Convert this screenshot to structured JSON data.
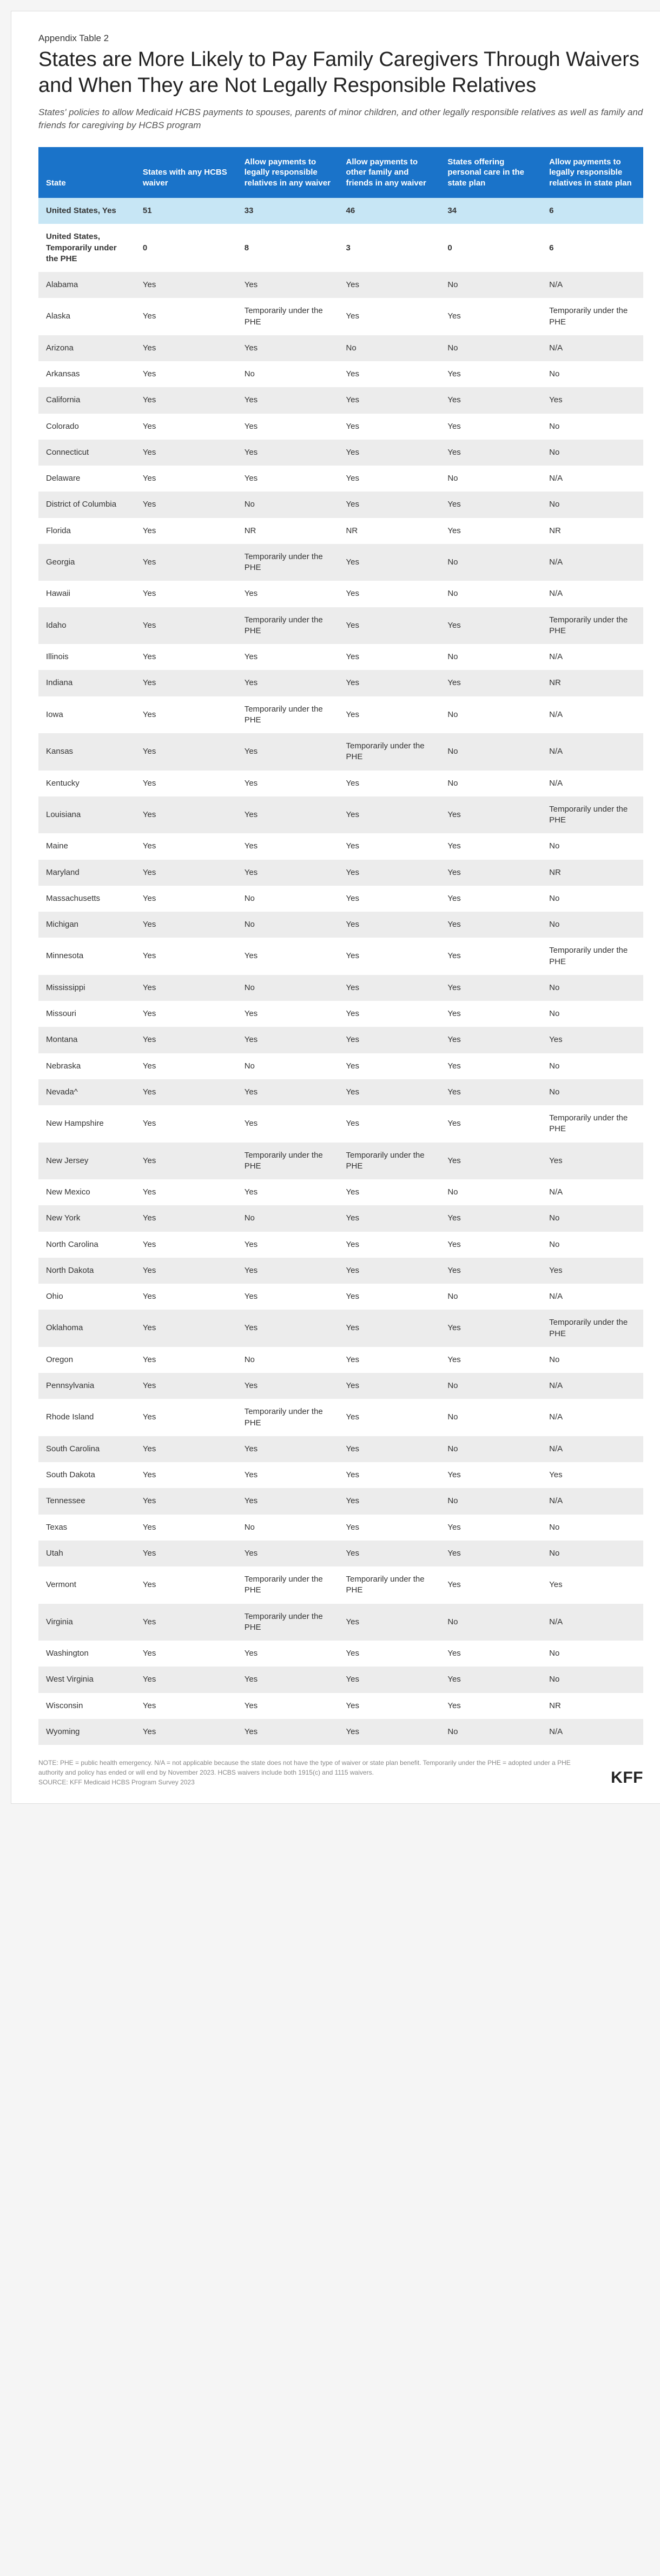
{
  "preTitle": "Appendix Table 2",
  "title": "States are More Likely to Pay Family Caregivers Through Waivers and When They are Not Legally Responsible Relatives",
  "subtitle": "States' policies to allow Medicaid HCBS payments to spouses, parents of minor children, and other legally responsible relatives as well as family and friends for caregiving by HCBS program",
  "columns": [
    "State",
    "States with any HCBS waiver",
    "Allow payments to legally responsible relatives in any waiver",
    "Allow payments to other family and friends in any waiver",
    "States offering personal care in the state plan",
    "Allow payments to legally responsible relatives in state plan"
  ],
  "summaryRows": [
    {
      "cells": [
        "United States, Yes",
        "51",
        "33",
        "46",
        "34",
        "6"
      ],
      "highlight": true
    },
    {
      "cells": [
        "United States, Temporarily under the PHE",
        "0",
        "8",
        "3",
        "0",
        "6"
      ],
      "bold": true
    }
  ],
  "rows": [
    [
      "Alabama",
      "Yes",
      "Yes",
      "Yes",
      "No",
      "N/A"
    ],
    [
      "Alaska",
      "Yes",
      "Temporarily under the PHE",
      "Yes",
      "Yes",
      "Temporarily under the PHE"
    ],
    [
      "Arizona",
      "Yes",
      "Yes",
      "No",
      "No",
      "N/A"
    ],
    [
      "Arkansas",
      "Yes",
      "No",
      "Yes",
      "Yes",
      "No"
    ],
    [
      "California",
      "Yes",
      "Yes",
      "Yes",
      "Yes",
      "Yes"
    ],
    [
      "Colorado",
      "Yes",
      "Yes",
      "Yes",
      "Yes",
      "No"
    ],
    [
      "Connecticut",
      "Yes",
      "Yes",
      "Yes",
      "Yes",
      "No"
    ],
    [
      "Delaware",
      "Yes",
      "Yes",
      "Yes",
      "No",
      "N/A"
    ],
    [
      "District of Columbia",
      "Yes",
      "No",
      "Yes",
      "Yes",
      "No"
    ],
    [
      "Florida",
      "Yes",
      "NR",
      "NR",
      "Yes",
      "NR"
    ],
    [
      "Georgia",
      "Yes",
      "Temporarily under the PHE",
      "Yes",
      "No",
      "N/A"
    ],
    [
      "Hawaii",
      "Yes",
      "Yes",
      "Yes",
      "No",
      "N/A"
    ],
    [
      "Idaho",
      "Yes",
      "Temporarily under the PHE",
      "Yes",
      "Yes",
      "Temporarily under the PHE"
    ],
    [
      "Illinois",
      "Yes",
      "Yes",
      "Yes",
      "No",
      "N/A"
    ],
    [
      "Indiana",
      "Yes",
      "Yes",
      "Yes",
      "Yes",
      "NR"
    ],
    [
      "Iowa",
      "Yes",
      "Temporarily under the PHE",
      "Yes",
      "No",
      "N/A"
    ],
    [
      "Kansas",
      "Yes",
      "Yes",
      "Temporarily under the PHE",
      "No",
      "N/A"
    ],
    [
      "Kentucky",
      "Yes",
      "Yes",
      "Yes",
      "No",
      "N/A"
    ],
    [
      "Louisiana",
      "Yes",
      "Yes",
      "Yes",
      "Yes",
      "Temporarily under the PHE"
    ],
    [
      "Maine",
      "Yes",
      "Yes",
      "Yes",
      "Yes",
      "No"
    ],
    [
      "Maryland",
      "Yes",
      "Yes",
      "Yes",
      "Yes",
      "NR"
    ],
    [
      "Massachusetts",
      "Yes",
      "No",
      "Yes",
      "Yes",
      "No"
    ],
    [
      "Michigan",
      "Yes",
      "No",
      "Yes",
      "Yes",
      "No"
    ],
    [
      "Minnesota",
      "Yes",
      "Yes",
      "Yes",
      "Yes",
      "Temporarily under the PHE"
    ],
    [
      "Mississippi",
      "Yes",
      "No",
      "Yes",
      "Yes",
      "No"
    ],
    [
      "Missouri",
      "Yes",
      "Yes",
      "Yes",
      "Yes",
      "No"
    ],
    [
      "Montana",
      "Yes",
      "Yes",
      "Yes",
      "Yes",
      "Yes"
    ],
    [
      "Nebraska",
      "Yes",
      "No",
      "Yes",
      "Yes",
      "No"
    ],
    [
      "Nevada^",
      "Yes",
      "Yes",
      "Yes",
      "Yes",
      "No"
    ],
    [
      "New Hampshire",
      "Yes",
      "Yes",
      "Yes",
      "Yes",
      "Temporarily under the PHE"
    ],
    [
      "New Jersey",
      "Yes",
      "Temporarily under the PHE",
      "Temporarily under the PHE",
      "Yes",
      "Yes"
    ],
    [
      "New Mexico",
      "Yes",
      "Yes",
      "Yes",
      "No",
      "N/A"
    ],
    [
      "New York",
      "Yes",
      "No",
      "Yes",
      "Yes",
      "No"
    ],
    [
      "North Carolina",
      "Yes",
      "Yes",
      "Yes",
      "Yes",
      "No"
    ],
    [
      "North Dakota",
      "Yes",
      "Yes",
      "Yes",
      "Yes",
      "Yes"
    ],
    [
      "Ohio",
      "Yes",
      "Yes",
      "Yes",
      "No",
      "N/A"
    ],
    [
      "Oklahoma",
      "Yes",
      "Yes",
      "Yes",
      "Yes",
      "Temporarily under the PHE"
    ],
    [
      "Oregon",
      "Yes",
      "No",
      "Yes",
      "Yes",
      "No"
    ],
    [
      "Pennsylvania",
      "Yes",
      "Yes",
      "Yes",
      "No",
      "N/A"
    ],
    [
      "Rhode Island",
      "Yes",
      "Temporarily under the PHE",
      "Yes",
      "No",
      "N/A"
    ],
    [
      "South Carolina",
      "Yes",
      "Yes",
      "Yes",
      "No",
      "N/A"
    ],
    [
      "South Dakota",
      "Yes",
      "Yes",
      "Yes",
      "Yes",
      "Yes"
    ],
    [
      "Tennessee",
      "Yes",
      "Yes",
      "Yes",
      "No",
      "N/A"
    ],
    [
      "Texas",
      "Yes",
      "No",
      "Yes",
      "Yes",
      "No"
    ],
    [
      "Utah",
      "Yes",
      "Yes",
      "Yes",
      "Yes",
      "No"
    ],
    [
      "Vermont",
      "Yes",
      "Temporarily under the PHE",
      "Temporarily under the PHE",
      "Yes",
      "Yes"
    ],
    [
      "Virginia",
      "Yes",
      "Temporarily under the PHE",
      "Yes",
      "No",
      "N/A"
    ],
    [
      "Washington",
      "Yes",
      "Yes",
      "Yes",
      "Yes",
      "No"
    ],
    [
      "West Virginia",
      "Yes",
      "Yes",
      "Yes",
      "Yes",
      "No"
    ],
    [
      "Wisconsin",
      "Yes",
      "Yes",
      "Yes",
      "Yes",
      "NR"
    ],
    [
      "Wyoming",
      "Yes",
      "Yes",
      "Yes",
      "No",
      "N/A"
    ]
  ],
  "footnote": "NOTE: PHE = public health emergency. N/A = not applicable because the state does not have the type of waiver or state plan benefit. Temporarily under the PHE = adopted under a PHE authority and policy has ended or will end by November 2023. HCBS waivers include both 1915(c) and 1115 waivers.\nSOURCE: KFF Medicaid HCBS Program Survey 2023",
  "logo": "KFF",
  "colors": {
    "headerBg": "#1a73c9",
    "highlightBg": "#c7e6f5",
    "stripeOdd": "#ececec"
  }
}
